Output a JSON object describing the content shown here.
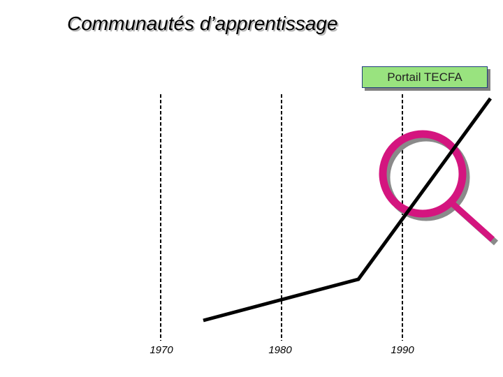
{
  "slide": {
    "title": "Communautés d’apprentissage",
    "portal_label": "Portail TECFA",
    "years": [
      "1970",
      "1980",
      "1990"
    ]
  },
  "colors": {
    "magnifier": "#d4157f",
    "magnifier_shadow": "#8a8a8a",
    "portal_fill": "#99e37f",
    "portal_border": "#1f3a7a",
    "curve": "#000000"
  },
  "icons": {
    "magnifier": "magnifying-glass-icon"
  }
}
